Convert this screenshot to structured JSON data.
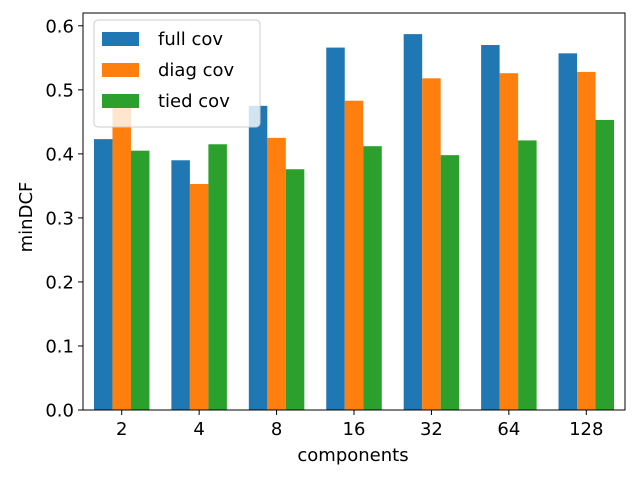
{
  "chart_data": {
    "type": "bar",
    "categories": [
      "2",
      "4",
      "8",
      "16",
      "32",
      "64",
      "128"
    ],
    "series": [
      {
        "name": "full cov",
        "color": "#1f77b4",
        "values": [
          0.423,
          0.39,
          0.475,
          0.566,
          0.587,
          0.57,
          0.557
        ]
      },
      {
        "name": "diag cov",
        "color": "#ff7f0e",
        "values": [
          0.482,
          0.353,
          0.425,
          0.483,
          0.518,
          0.526,
          0.528
        ]
      },
      {
        "name": "tied cov",
        "color": "#2ca02c",
        "values": [
          0.405,
          0.415,
          0.376,
          0.412,
          0.398,
          0.421,
          0.453
        ]
      }
    ],
    "xlabel": "components",
    "ylabel": "minDCF",
    "ylim": [
      0,
      0.62
    ],
    "yticks": [
      "0.0",
      "0.1",
      "0.2",
      "0.3",
      "0.4",
      "0.5",
      "0.6"
    ],
    "legend_position": "top-left",
    "grid": false
  }
}
